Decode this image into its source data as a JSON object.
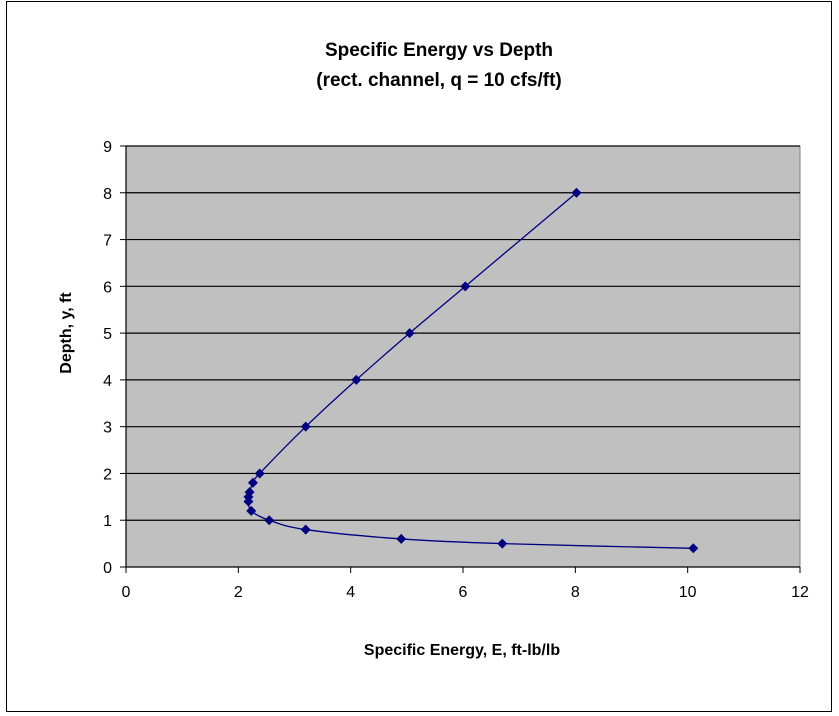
{
  "chart_data": {
    "type": "scatter",
    "title": "Specific Energy vs Depth",
    "subtitle": "(rect. channel, q = 10 cfs/ft)",
    "xlabel": "Specific Energy, E, ft-lb/lb",
    "ylabel": "Depth, y, ft",
    "xlim": [
      0,
      12
    ],
    "ylim": [
      0,
      9
    ],
    "x_ticks": [
      "0",
      "2",
      "4",
      "6",
      "8",
      "10",
      "12"
    ],
    "y_ticks": [
      "0",
      "1",
      "2",
      "3",
      "4",
      "5",
      "6",
      "7",
      "8",
      "9"
    ],
    "grid": "horizontal",
    "legend": "none",
    "plot_background": "#c0c0c0",
    "series_color": "#000080",
    "series": [
      {
        "points": [
          {
            "x": 10.1,
            "y": 0.4
          },
          {
            "x": 6.7,
            "y": 0.5
          },
          {
            "x": 4.9,
            "y": 0.6
          },
          {
            "x": 3.2,
            "y": 0.8
          },
          {
            "x": 2.55,
            "y": 1.0
          },
          {
            "x": 2.23,
            "y": 1.2
          },
          {
            "x": 2.18,
            "y": 1.4
          },
          {
            "x": 2.18,
            "y": 1.5
          },
          {
            "x": 2.2,
            "y": 1.6
          },
          {
            "x": 2.26,
            "y": 1.8
          },
          {
            "x": 2.38,
            "y": 2.0
          },
          {
            "x": 3.2,
            "y": 3.0
          },
          {
            "x": 4.1,
            "y": 4.0
          },
          {
            "x": 5.05,
            "y": 5.0
          },
          {
            "x": 6.04,
            "y": 6.0
          },
          {
            "x": 8.02,
            "y": 8.0
          }
        ]
      }
    ]
  }
}
